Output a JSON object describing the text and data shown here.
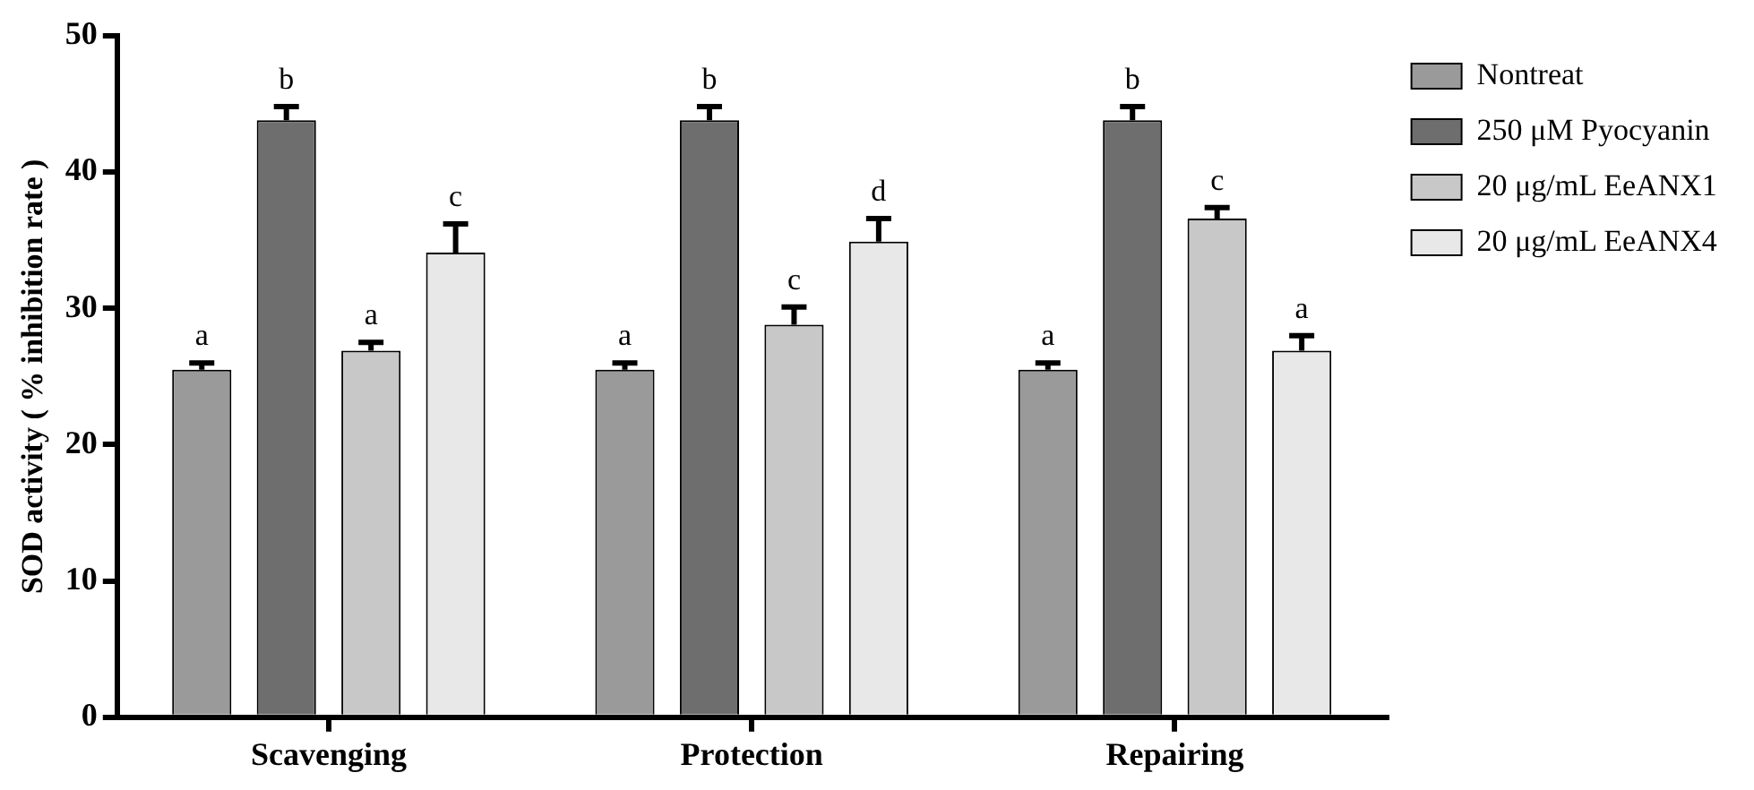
{
  "chart_data": {
    "type": "bar",
    "ylabel": "SOD activity ( % inhibition rate )",
    "categories": [
      "Scavenging",
      "Protection",
      "Repairing"
    ],
    "ylim": [
      0,
      50
    ],
    "yticks": [
      0,
      10,
      20,
      30,
      40,
      50
    ],
    "grid": false,
    "legend": "top right",
    "series": [
      {
        "name": "Nontreat",
        "color": "#9a9a9a",
        "values": [
          25.5,
          25.5,
          25.5
        ],
        "errors": [
          0.5,
          0.5,
          0.5
        ],
        "value_labels": [
          "a",
          "a",
          "a"
        ]
      },
      {
        "name": "250 μM Pyocyanin",
        "color": "#6e6e6e",
        "values": [
          43.8,
          43.8,
          43.8
        ],
        "errors": [
          1.0,
          1.0,
          1.0
        ],
        "value_labels": [
          "b",
          "b",
          "b"
        ]
      },
      {
        "name": "20 μg/mL EeANX1",
        "color": "#c8c8c8",
        "values": [
          26.9,
          28.8,
          36.6
        ],
        "errors": [
          0.6,
          1.3,
          0.8
        ],
        "value_labels": [
          "a",
          "c",
          "c"
        ]
      },
      {
        "name": "20 μg/mL EeANX4",
        "color": "#e8e8e8",
        "values": [
          34.1,
          34.9,
          26.9
        ],
        "errors": [
          2.1,
          1.7,
          1.1
        ],
        "value_labels": [
          "c",
          "d",
          "a"
        ]
      }
    ]
  }
}
